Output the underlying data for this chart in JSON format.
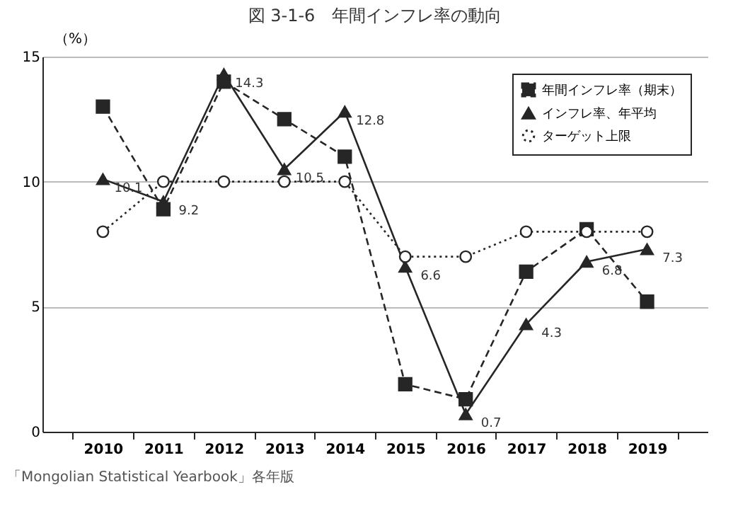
{
  "chart_data": {
    "type": "line",
    "title": "図 3-1-6　年間インフレ率の動向",
    "ylabel": "（%）",
    "categories": [
      "2010",
      "2011",
      "2012",
      "2013",
      "2014",
      "2015",
      "2016",
      "2017",
      "2018",
      "2019"
    ],
    "series": [
      {
        "name": "年間インフレ率（期末）",
        "color": "#262626",
        "marker": "square",
        "line_style": "dashed",
        "values": [
          13.0,
          8.9,
          14.0,
          12.5,
          11.0,
          1.9,
          1.3,
          6.4,
          8.1,
          5.2
        ]
      },
      {
        "name": "インフレ率、年平均",
        "color": "#262626",
        "marker": "triangle",
        "line_style": "solid",
        "values": [
          10.1,
          9.2,
          14.3,
          10.5,
          12.8,
          6.6,
          0.7,
          4.3,
          6.8,
          7.3
        ],
        "value_labels": [
          "10.1",
          "9.2",
          "14.3",
          "10.5",
          "12.8",
          "6.6",
          "0.7",
          "4.3",
          "6.8",
          "7.3"
        ]
      },
      {
        "name": "ターゲット上限",
        "color": "#262626",
        "marker": "circle",
        "line_style": "dotted",
        "values": [
          8,
          10,
          10,
          10,
          10,
          7,
          7,
          8,
          8,
          8
        ]
      }
    ],
    "ylim": [
      0,
      15
    ],
    "yticks": [
      0,
      5,
      10,
      15
    ],
    "grid": "y",
    "legend": "top right",
    "annotations": [
      "「Mongolian Statistical Yearbook」各年版"
    ]
  }
}
